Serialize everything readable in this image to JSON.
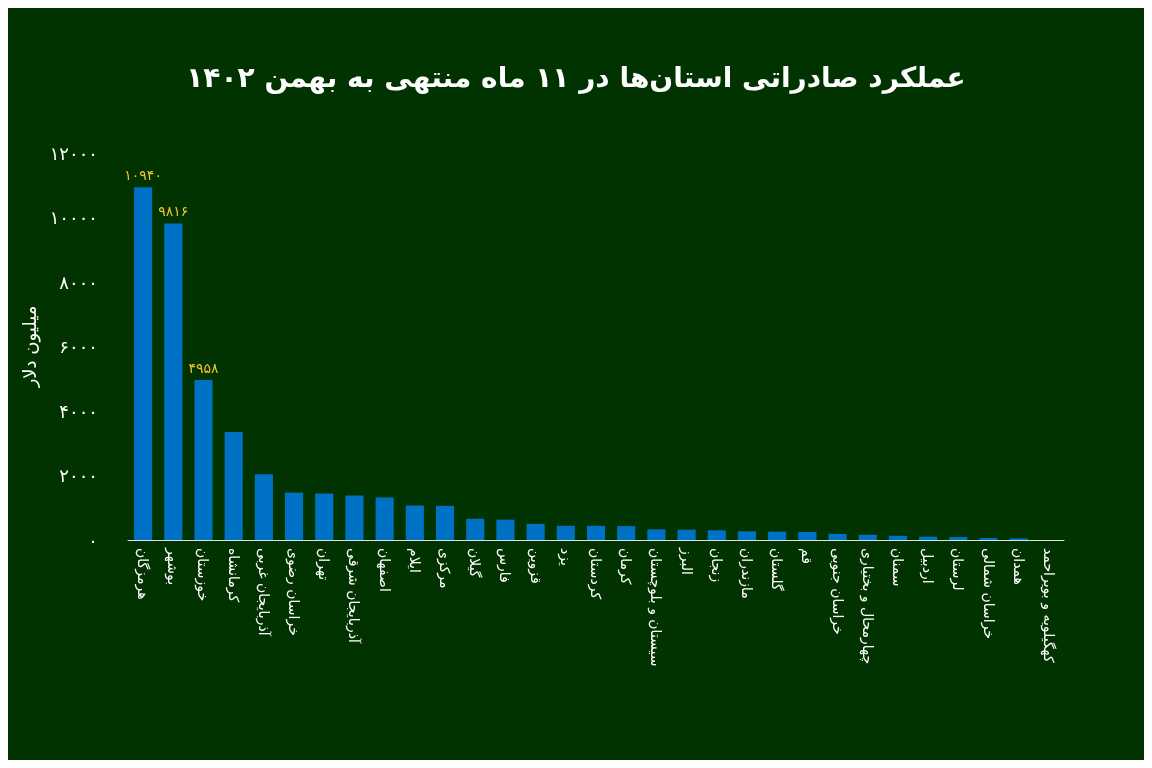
{
  "chart_data": {
    "type": "bar",
    "title": "عملکرد صادراتی استان‌ها در ۱۱ ماه منتهی به بهمن ۱۴۰۲",
    "ylabel": "میلیون دلار",
    "categories": [
      "هرمزگان",
      "بوشهر",
      "خوزستان",
      "کرمانشاه",
      "آذربایجان غربی",
      "خراسان رضوی",
      "تهران",
      "آذربایجان شرقی",
      "اصفهان",
      "ایلام",
      "مرکزی",
      "گیلان",
      "فارس",
      "قزوین",
      "یزد",
      "کردستان",
      "کرمان",
      "سیستان و بلوچستان",
      "البرز",
      "زنجان",
      "مازندران",
      "گلستان",
      "قم",
      "خراسان جنوبی",
      "چهارمحال و بختیاری",
      "سمنان",
      "اردبیل",
      "لرستان",
      "خراسان شمالی",
      "همدان",
      "کهگیلویه و بویراحمد"
    ],
    "values": [
      10940,
      9816,
      4958,
      3350,
      2040,
      1470,
      1440,
      1380,
      1320,
      1070,
      1060,
      660,
      630,
      500,
      440,
      440,
      430,
      330,
      320,
      300,
      270,
      260,
      250,
      190,
      160,
      130,
      100,
      90,
      60,
      50,
      null
    ],
    "value_labels": [
      "۱۰۹۴۰",
      "۹۸۱۶",
      "۴۹۵۸",
      null,
      null,
      null,
      null,
      null,
      null,
      null,
      null,
      null,
      null,
      null,
      null,
      null,
      null,
      null,
      null,
      null,
      null,
      null,
      null,
      null,
      null,
      null,
      null,
      null,
      null,
      null,
      null
    ],
    "color": "#0072c6",
    "ylim": [
      0,
      12000
    ],
    "yticks": [
      {
        "value": 0,
        "label": "۰"
      },
      {
        "value": 2000,
        "label": "۲۰۰۰"
      },
      {
        "value": 4000,
        "label": "۴۰۰۰"
      },
      {
        "value": 6000,
        "label": "۶۰۰۰"
      },
      {
        "value": 8000,
        "label": "۸۰۰۰"
      },
      {
        "value": 10000,
        "label": "۱۰۰۰۰"
      },
      {
        "value": 12000,
        "label": "۱۲۰۰۰"
      }
    ],
    "grid": false
  }
}
